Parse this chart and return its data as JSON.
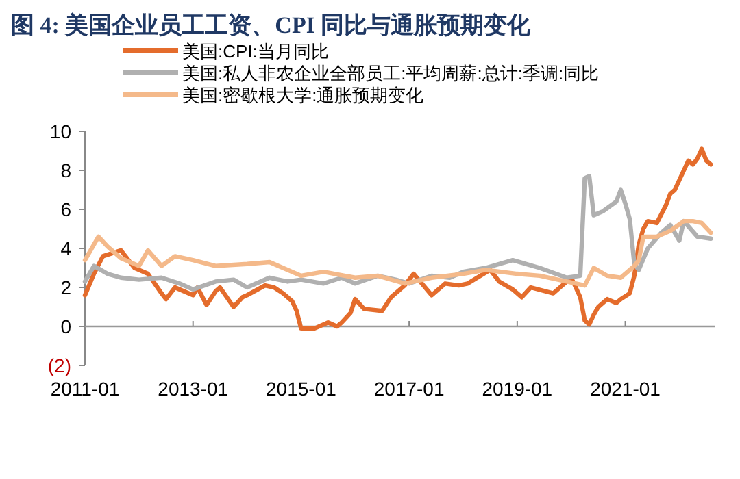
{
  "chart_data": {
    "type": "line",
    "title": "图 4: 美国企业员工工资、CPI 同比与通胀预期变化",
    "xlim": [
      "2011-01",
      "2022-09"
    ],
    "xticks": [
      "2011-01",
      "2013-01",
      "2015-01",
      "2017-01",
      "2019-01",
      "2021-01"
    ],
    "ylim": [
      -2,
      10
    ],
    "yticks": [
      {
        "value": -2,
        "label": "(2)"
      },
      0,
      2,
      4,
      6,
      8,
      10
    ],
    "legend": "top",
    "line_style": "solid",
    "marker": "none",
    "series": [
      {
        "name": "美国:CPI:当月同比",
        "color": "#e46c2c",
        "x": [
          "2011-01",
          "2011-03",
          "2011-05",
          "2011-09",
          "2011-12",
          "2012-01",
          "2012-03",
          "2012-06",
          "2012-07",
          "2012-09",
          "2012-12",
          "2013-01",
          "2013-02",
          "2013-04",
          "2013-06",
          "2013-07",
          "2013-10",
          "2013-12",
          "2014-01",
          "2014-05",
          "2014-07",
          "2014-09",
          "2014-11",
          "2014-12",
          "2015-01",
          "2015-04",
          "2015-07",
          "2015-09",
          "2015-10",
          "2015-12",
          "2016-01",
          "2016-03",
          "2016-07",
          "2016-09",
          "2016-12",
          "2017-02",
          "2017-06",
          "2017-09",
          "2017-12",
          "2018-02",
          "2018-07",
          "2018-09",
          "2018-12",
          "2019-02",
          "2019-04",
          "2019-09",
          "2019-12",
          "2020-01",
          "2020-03",
          "2020-04",
          "2020-05",
          "2020-06",
          "2020-07",
          "2020-09",
          "2020-11",
          "2020-12",
          "2021-02",
          "2021-03",
          "2021-04",
          "2021-05",
          "2021-06",
          "2021-08",
          "2021-10",
          "2021-11",
          "2021-12",
          "2022-01",
          "2022-03",
          "2022-04",
          "2022-05",
          "2022-06",
          "2022-07",
          "2022-08"
        ],
        "values": [
          1.6,
          2.7,
          3.6,
          3.9,
          3.0,
          2.9,
          2.7,
          1.7,
          1.4,
          2.0,
          1.7,
          1.6,
          2.0,
          1.1,
          1.8,
          2.0,
          1.0,
          1.5,
          1.6,
          2.1,
          2.0,
          1.7,
          1.3,
          0.8,
          -0.1,
          -0.1,
          0.2,
          0.0,
          0.2,
          0.7,
          1.4,
          0.9,
          0.8,
          1.5,
          2.1,
          2.7,
          1.6,
          2.2,
          2.1,
          2.2,
          2.9,
          2.3,
          1.9,
          1.5,
          2.0,
          1.7,
          2.3,
          2.5,
          1.5,
          0.3,
          0.1,
          0.6,
          1.0,
          1.4,
          1.2,
          1.4,
          1.7,
          2.6,
          4.2,
          5.0,
          5.4,
          5.3,
          6.2,
          6.8,
          7.0,
          7.5,
          8.5,
          8.3,
          8.6,
          9.1,
          8.5,
          8.3
        ]
      },
      {
        "name": "美国:私人非农企业全部员工:平均周薪:总计:季调:同比",
        "color": "#b0b0b0",
        "x": [
          "2011-01",
          "2011-03",
          "2011-06",
          "2011-09",
          "2012-01",
          "2012-06",
          "2012-10",
          "2013-01",
          "2013-06",
          "2013-10",
          "2014-01",
          "2014-06",
          "2014-10",
          "2015-01",
          "2015-06",
          "2015-10",
          "2016-01",
          "2016-06",
          "2016-10",
          "2017-01",
          "2017-06",
          "2017-10",
          "2018-01",
          "2018-06",
          "2018-12",
          "2019-06",
          "2019-12",
          "2020-03",
          "2020-04",
          "2020-05",
          "2020-06",
          "2020-08",
          "2020-11",
          "2020-12",
          "2021-01",
          "2021-02",
          "2021-03",
          "2021-04",
          "2021-06",
          "2021-09",
          "2021-11",
          "2022-01",
          "2022-02",
          "2022-05",
          "2022-08"
        ],
        "values": [
          2.3,
          3.1,
          2.7,
          2.5,
          2.4,
          2.5,
          2.2,
          1.9,
          2.3,
          2.4,
          2.0,
          2.5,
          2.3,
          2.4,
          2.2,
          2.5,
          2.2,
          2.6,
          2.4,
          2.2,
          2.6,
          2.5,
          2.8,
          3.0,
          3.4,
          3.0,
          2.5,
          2.6,
          7.6,
          7.7,
          5.7,
          5.9,
          6.4,
          7.0,
          6.3,
          5.5,
          3.2,
          2.9,
          4.0,
          4.8,
          5.2,
          4.4,
          5.4,
          4.6,
          4.5
        ]
      },
      {
        "name": "美国:密歇根大学:通胀预期变化",
        "color": "#f4b98a",
        "x": [
          "2011-01",
          "2011-04",
          "2011-06",
          "2011-09",
          "2012-01",
          "2012-03",
          "2012-06",
          "2012-09",
          "2013-01",
          "2013-06",
          "2014-01",
          "2014-06",
          "2015-01",
          "2015-06",
          "2016-01",
          "2016-06",
          "2016-12",
          "2017-06",
          "2018-01",
          "2018-06",
          "2019-01",
          "2019-06",
          "2019-12",
          "2020-04",
          "2020-06",
          "2020-09",
          "2020-12",
          "2021-03",
          "2021-04",
          "2021-05",
          "2021-08",
          "2021-11",
          "2022-02",
          "2022-04",
          "2022-06",
          "2022-08"
        ],
        "values": [
          3.4,
          4.6,
          4.1,
          3.5,
          3.1,
          3.9,
          3.1,
          3.6,
          3.4,
          3.1,
          3.2,
          3.3,
          2.6,
          2.8,
          2.5,
          2.6,
          2.2,
          2.5,
          2.7,
          2.9,
          2.7,
          2.6,
          2.3,
          2.1,
          3.0,
          2.6,
          2.5,
          3.1,
          3.4,
          4.6,
          4.6,
          4.9,
          5.4,
          5.4,
          5.3,
          4.8
        ]
      }
    ]
  }
}
